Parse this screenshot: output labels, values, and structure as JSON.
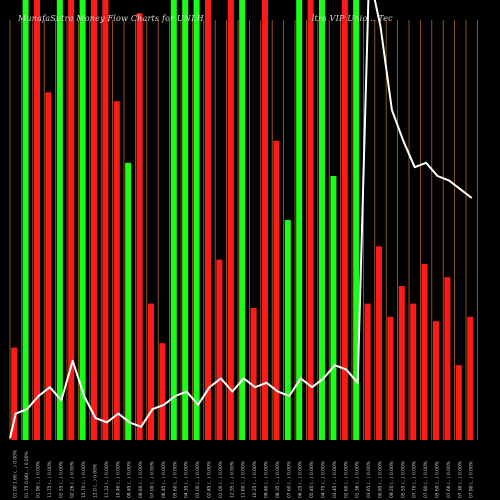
{
  "header": {
    "title_left": "MunafaSutra Money Flow Charts for UNLH",
    "title_right": "ltra VIP Unio... Tec"
  },
  "colors": {
    "background": "#000000",
    "up": "#1aff1a",
    "down": "#ff1a1a",
    "grid": "#b06a1a",
    "line": "#ffffff"
  },
  "chart_data": {
    "type": "bar",
    "ylim": [
      0,
      100
    ],
    "bars": [
      {
        "value": 21,
        "dir": "down",
        "label": "01.00 1.60 (...) 0.00%"
      },
      {
        "value": 100,
        "dir": "up",
        "label": "01.75 0.86(...) 0.00%"
      },
      {
        "value": 100,
        "dir": "down",
        "label": "01.90 (...) 0.00%"
      },
      {
        "value": 79,
        "dir": "down",
        "label": "11.75 (...) 0.00%"
      },
      {
        "value": 100,
        "dir": "up",
        "label": "02.55 (...) 0.00%"
      },
      {
        "value": 100,
        "dir": "down",
        "label": "02.26 (...) 0.00%"
      },
      {
        "value": 100,
        "dir": "up",
        "label": "15.70 (...) 0.00%"
      },
      {
        "value": 100,
        "dir": "down",
        "label": "12.0 (...) 0.00%"
      },
      {
        "value": 100,
        "dir": "down",
        "label": "11.22 (...) 0.00%"
      },
      {
        "value": 77,
        "dir": "down",
        "label": "10.40 (...) 0.00%"
      },
      {
        "value": 63,
        "dir": "up",
        "label": "09.45 (...) 0.00%"
      },
      {
        "value": 97,
        "dir": "down",
        "label": "08.60 (...) 0.00%"
      },
      {
        "value": 31,
        "dir": "down",
        "label": "07.00 (...) 0.00%"
      },
      {
        "value": 22,
        "dir": "down",
        "label": "06.45 (...) 0.00%"
      },
      {
        "value": 100,
        "dir": "up",
        "label": "05.60 (...) 0.00%"
      },
      {
        "value": 100,
        "dir": "up",
        "label": "04.35 (...) 0.00%"
      },
      {
        "value": 100,
        "dir": "up",
        "label": "03.00 (...) 0.00%"
      },
      {
        "value": 100,
        "dir": "down",
        "label": "02.45 (...) 0.00%"
      },
      {
        "value": 41,
        "dir": "down",
        "label": "01.00 (...) 0.00%"
      },
      {
        "value": 100,
        "dir": "down",
        "label": "12.35 (...) 0.00%"
      },
      {
        "value": 100,
        "dir": "up",
        "label": "11.60 (...) 0.00%"
      },
      {
        "value": 30,
        "dir": "down",
        "label": "10.25 (...) 0.00%"
      },
      {
        "value": 100,
        "dir": "down",
        "label": "09.40 (...) 0.00%"
      },
      {
        "value": 68,
        "dir": "down",
        "label": "08.35 (...) 0.00%"
      },
      {
        "value": 50,
        "dir": "up",
        "label": "07.60 (...) 0.00%"
      },
      {
        "value": 100,
        "dir": "up",
        "label": "06.25 (...) 0.00%"
      },
      {
        "value": 100,
        "dir": "down",
        "label": "05.40 (...) 0.00%"
      },
      {
        "value": 100,
        "dir": "up",
        "label": "04.75 (...) 0.00%"
      },
      {
        "value": 60,
        "dir": "up",
        "label": "03.45 (...) 0.00%"
      },
      {
        "value": 100,
        "dir": "down",
        "label": "02.60 (...) 0.00%"
      },
      {
        "value": 100,
        "dir": "up",
        "label": "01.36 (...) 0.00%"
      },
      {
        "value": 31,
        "dir": "down",
        "label": "03.65 (...) 0.00%"
      },
      {
        "value": 44,
        "dir": "down",
        "label": "00.85 (...) 0.00%"
      },
      {
        "value": 28,
        "dir": "down",
        "label": "09.20 (...) 0.00%"
      },
      {
        "value": 35,
        "dir": "down",
        "label": "05.55 (...) 0.00%"
      },
      {
        "value": 31,
        "dir": "down",
        "label": "07.70 (...) 0.00%"
      },
      {
        "value": 40,
        "dir": "down",
        "label": "07.80 (...) 0.00%"
      },
      {
        "value": 27,
        "dir": "down",
        "label": "05.60 (...) 0.00%"
      },
      {
        "value": 37,
        "dir": "down",
        "label": "07.66 (...) 0.00%"
      },
      {
        "value": 17,
        "dir": "down",
        "label": "07.30 (...) 0.00%"
      },
      {
        "value": 28,
        "dir": "down",
        "label": "07.90 (...) 0.00%"
      }
    ],
    "line": [
      {
        "i": 0,
        "y": 11
      },
      {
        "i": 1,
        "y": 6
      },
      {
        "i": 2,
        "y": 7
      },
      {
        "i": 3,
        "y": 10
      },
      {
        "i": 4,
        "y": 12
      },
      {
        "i": 5,
        "y": 9
      },
      {
        "i": 6,
        "y": 18
      },
      {
        "i": 7,
        "y": 10
      },
      {
        "i": 8,
        "y": 5
      },
      {
        "i": 9,
        "y": 4
      },
      {
        "i": 10,
        "y": 6
      },
      {
        "i": 11,
        "y": 4
      },
      {
        "i": 12,
        "y": 3
      },
      {
        "i": 13,
        "y": 7
      },
      {
        "i": 14,
        "y": 8
      },
      {
        "i": 15,
        "y": 10
      },
      {
        "i": 16,
        "y": 11
      },
      {
        "i": 17,
        "y": 8
      },
      {
        "i": 18,
        "y": 12
      },
      {
        "i": 19,
        "y": 14
      },
      {
        "i": 20,
        "y": 11
      },
      {
        "i": 21,
        "y": 14
      },
      {
        "i": 22,
        "y": 12
      },
      {
        "i": 23,
        "y": 13
      },
      {
        "i": 24,
        "y": 11
      },
      {
        "i": 25,
        "y": 10
      },
      {
        "i": 26,
        "y": 14
      },
      {
        "i": 27,
        "y": 12
      },
      {
        "i": 28,
        "y": 14
      },
      {
        "i": 29,
        "y": 17
      },
      {
        "i": 30,
        "y": 16
      },
      {
        "i": 31,
        "y": 13
      },
      {
        "i": 32,
        "y": 105
      },
      {
        "i": 33,
        "y": 90
      },
      {
        "i": 34,
        "y": 70
      },
      {
        "i": 35,
        "y": 64
      },
      {
        "i": 36,
        "y": 59
      },
      {
        "i": 37,
        "y": 57
      },
      {
        "i": 38,
        "y": 56
      },
      {
        "i": 39,
        "y": 55
      },
      {
        "i": 40,
        "y": 53
      }
    ],
    "line_plot": [
      {
        "x": 0,
        "y": 0.4
      },
      {
        "x": 0.5,
        "y": 6
      },
      {
        "x": 1.5,
        "y": 7
      },
      {
        "x": 2.5,
        "y": 10
      },
      {
        "x": 3.5,
        "y": 12
      },
      {
        "x": 4.5,
        "y": 9
      },
      {
        "x": 5.5,
        "y": 18
      },
      {
        "x": 6.5,
        "y": 10
      },
      {
        "x": 7.5,
        "y": 5
      },
      {
        "x": 8.5,
        "y": 4
      },
      {
        "x": 9.5,
        "y": 6
      },
      {
        "x": 10.5,
        "y": 4
      },
      {
        "x": 11.5,
        "y": 3
      },
      {
        "x": 12.5,
        "y": 7
      },
      {
        "x": 13.5,
        "y": 8
      },
      {
        "x": 14.5,
        "y": 10
      },
      {
        "x": 15.5,
        "y": 11
      },
      {
        "x": 16.5,
        "y": 8
      },
      {
        "x": 17.5,
        "y": 12
      },
      {
        "x": 18.5,
        "y": 14
      },
      {
        "x": 19.5,
        "y": 11
      },
      {
        "x": 20.5,
        "y": 14
      },
      {
        "x": 21.5,
        "y": 12
      },
      {
        "x": 22.5,
        "y": 13
      },
      {
        "x": 23.5,
        "y": 11
      },
      {
        "x": 24.5,
        "y": 10
      },
      {
        "x": 25.5,
        "y": 14
      },
      {
        "x": 26.5,
        "y": 12
      },
      {
        "x": 27.5,
        "y": 14
      },
      {
        "x": 28.5,
        "y": 17
      },
      {
        "x": 29.5,
        "y": 16
      },
      {
        "x": 30.5,
        "y": 13
      },
      {
        "x": 31.5,
        "y": 106
      },
      {
        "x": 32.5,
        "y": 94
      },
      {
        "x": 33.5,
        "y": 75
      },
      {
        "x": 34.5,
        "y": 68
      },
      {
        "x": 35.5,
        "y": 62
      },
      {
        "x": 36.5,
        "y": 63
      },
      {
        "x": 37.5,
        "y": 60
      },
      {
        "x": 38.5,
        "y": 59
      },
      {
        "x": 39.5,
        "y": 57
      },
      {
        "x": 40.5,
        "y": 55
      }
    ]
  }
}
